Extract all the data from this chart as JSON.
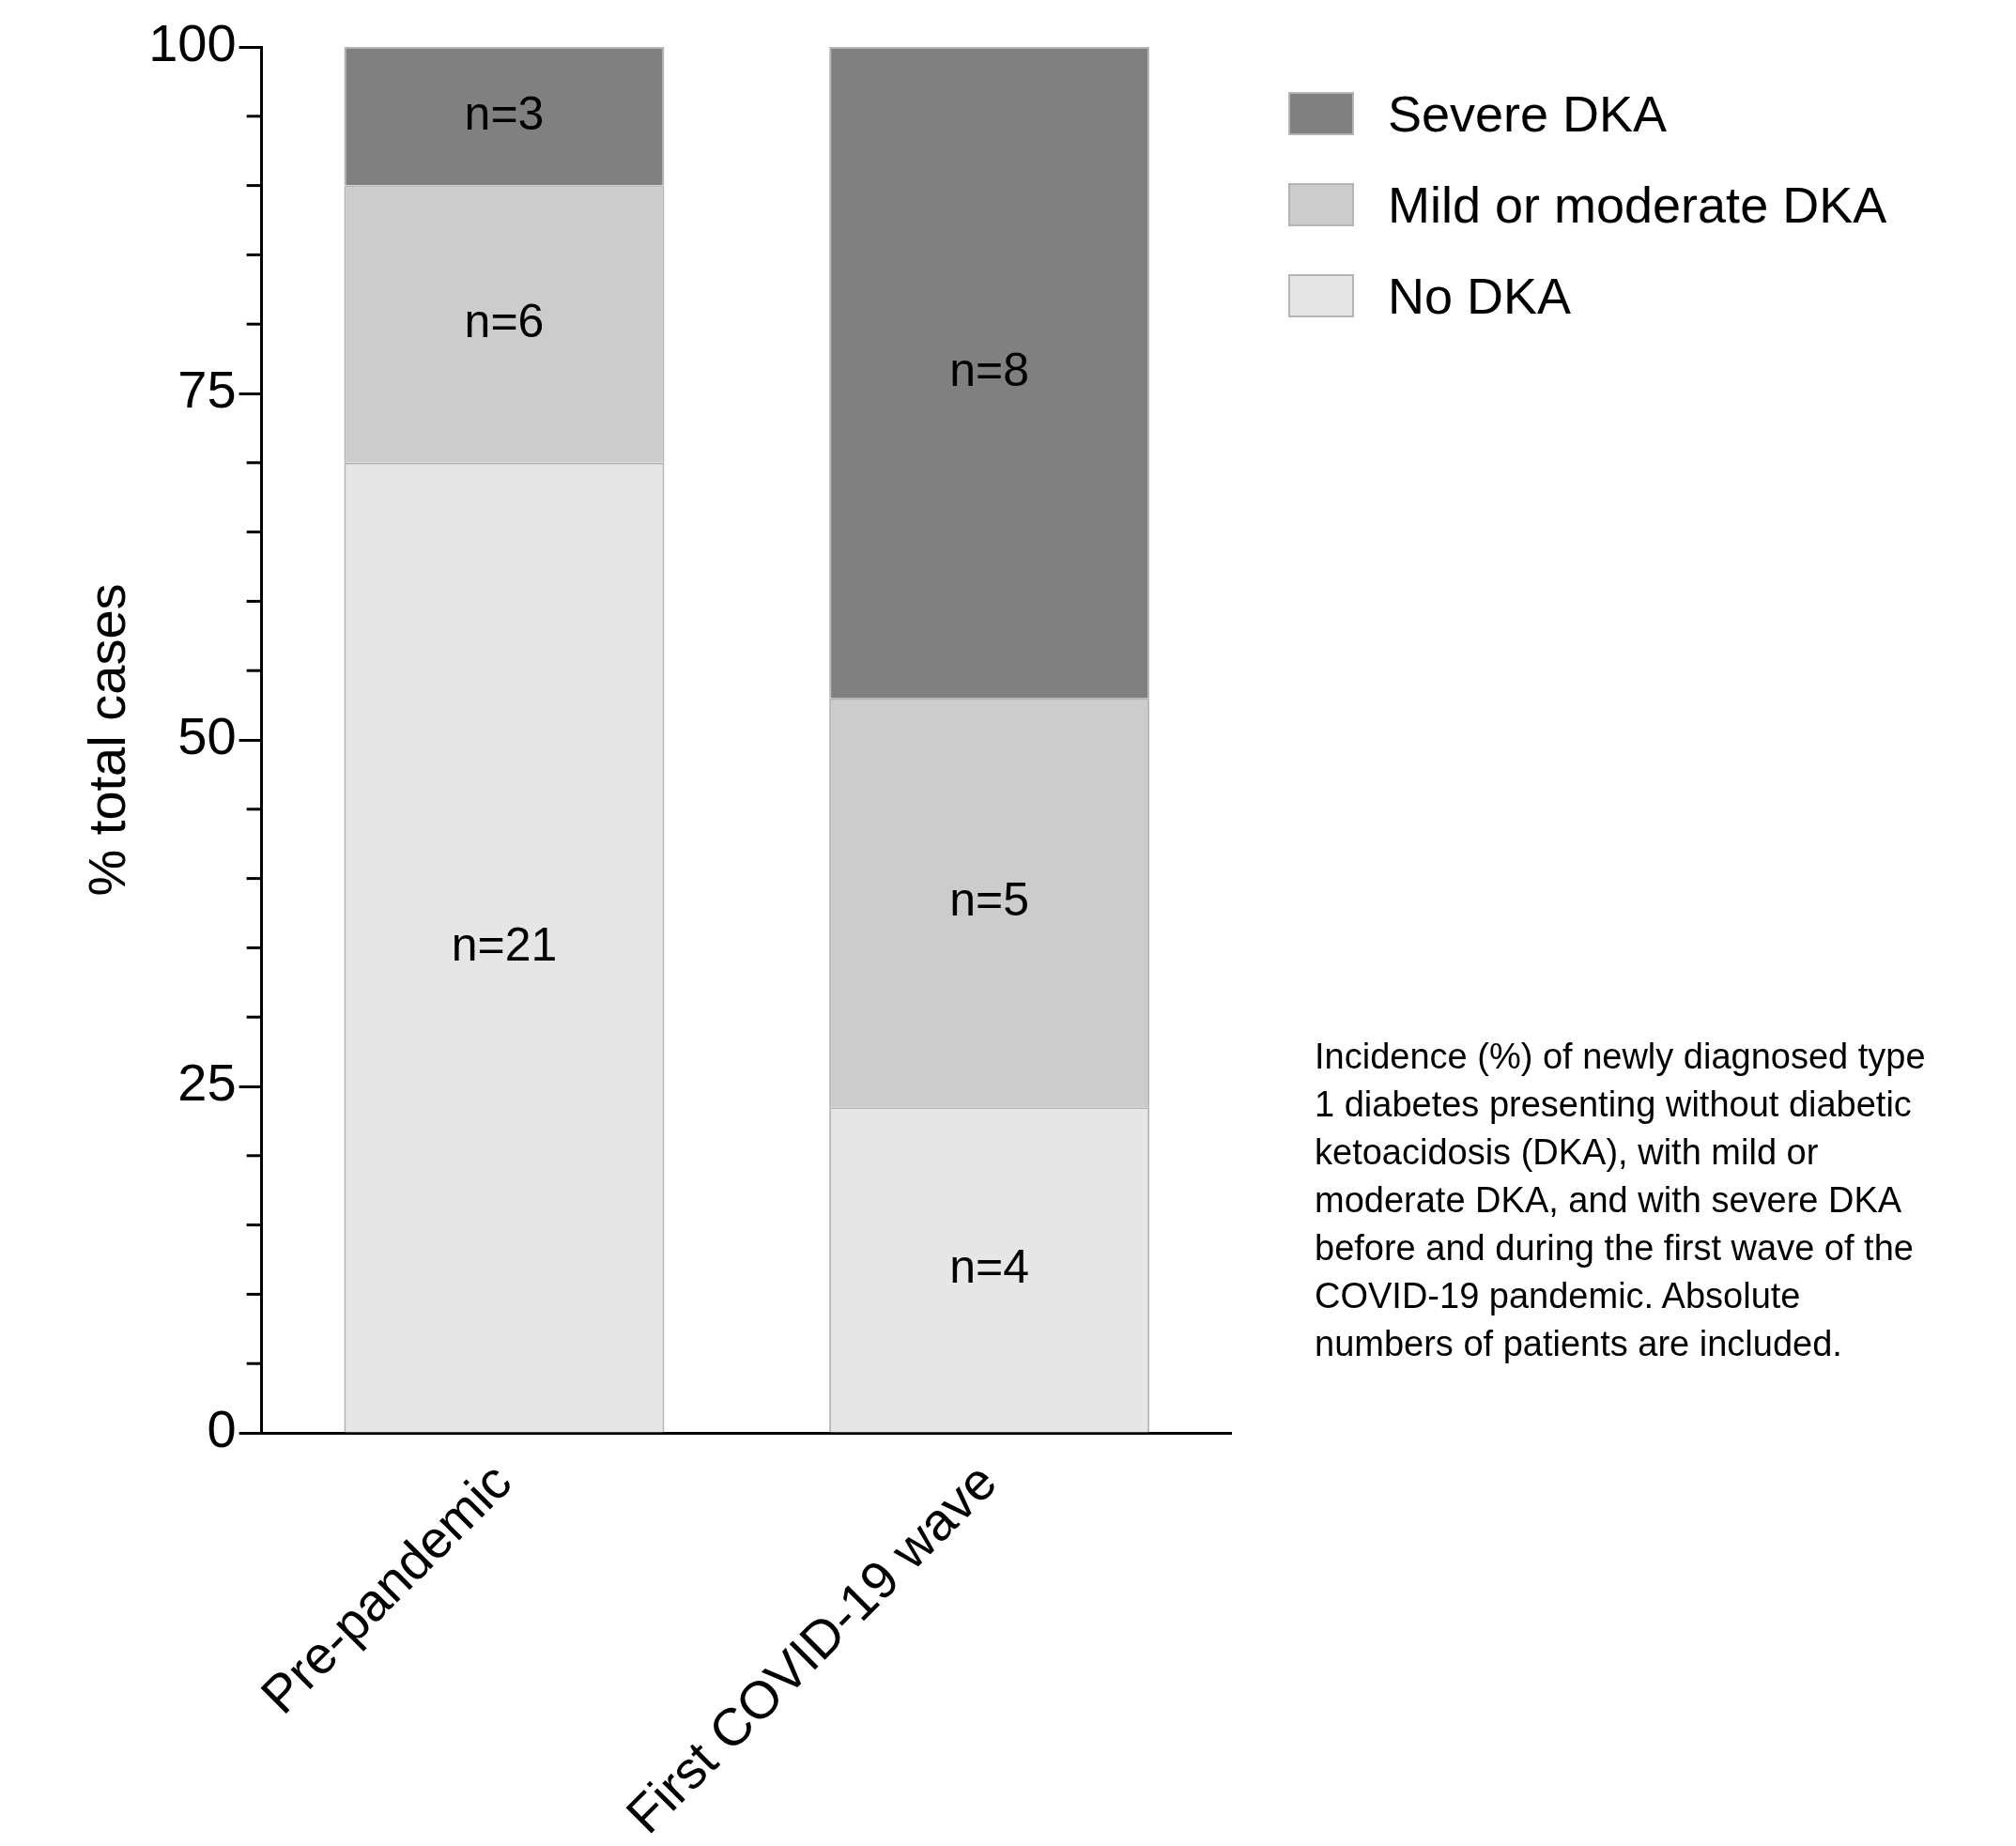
{
  "chart_data": {
    "type": "bar",
    "stacked": true,
    "categories": [
      "Pre-pandemic",
      "First COVID-19 wave"
    ],
    "ylabel": "% total cases",
    "series": [
      {
        "name": "No DKA",
        "color": "#e6e6e6",
        "values": [
          70,
          23.5
        ]
      },
      {
        "name": "Mild or moderate DKA",
        "color": "#cccccc",
        "values": [
          20,
          29.5
        ]
      },
      {
        "name": "Severe DKA",
        "color": "#808080",
        "values": [
          10,
          47
        ]
      }
    ],
    "ylim": [
      0,
      100
    ],
    "yticks": [
      0,
      {
        "value": 5,
        "label": null
      },
      {
        "value": 10,
        "label": null
      },
      {
        "value": 15,
        "label": null
      },
      {
        "value": 20,
        "label": null
      },
      25,
      {
        "value": 30,
        "label": null
      },
      {
        "value": 35,
        "label": null
      },
      {
        "value": 40,
        "label": null
      },
      {
        "value": 45,
        "label": null
      },
      50,
      {
        "value": 55,
        "label": null
      },
      {
        "value": 60,
        "label": null
      },
      {
        "value": 65,
        "label": null
      },
      {
        "value": 70,
        "label": null
      },
      75,
      {
        "value": 80,
        "label": null
      },
      {
        "value": 85,
        "label": null
      },
      {
        "value": 90,
        "label": null
      },
      {
        "value": 95,
        "label": null
      },
      100
    ],
    "grid": false,
    "legend": "top right",
    "annotations": [
      "n=21",
      "n=4",
      "n=6",
      "n=5",
      "n=3",
      "n=8",
      "Incidence (%) of newly diagnosed type 1 diabetes presenting without diabetic ketoacidosis (DKA), with mild or moderate DKA, and with severe DKA before and during the first wave of the COVID-19 pandemic. Absolute numbers of patients are included."
    ]
  }
}
